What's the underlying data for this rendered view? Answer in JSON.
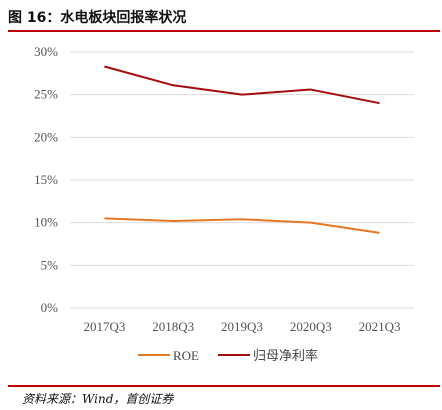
{
  "figure_title": "图 16：水电板块回报率状况",
  "source_note": "资料来源：Wind，首创证券",
  "chart_data": {
    "type": "line",
    "categories": [
      "2017Q3",
      "2018Q3",
      "2019Q3",
      "2020Q3",
      "2021Q3"
    ],
    "series": [
      {
        "name": "ROE",
        "color": "#e87722",
        "values": [
          10.5,
          10.2,
          10.4,
          10.0,
          8.8
        ]
      },
      {
        "name": "归母净利率",
        "color": "#a50d0d",
        "values": [
          28.3,
          26.1,
          25.0,
          25.6,
          24.0
        ]
      }
    ],
    "ylim": [
      0,
      30
    ],
    "yticks": [
      "0%",
      "5%",
      "10%",
      "15%",
      "20%",
      "25%",
      "30%"
    ],
    "grid": true,
    "legend": "bottom"
  }
}
